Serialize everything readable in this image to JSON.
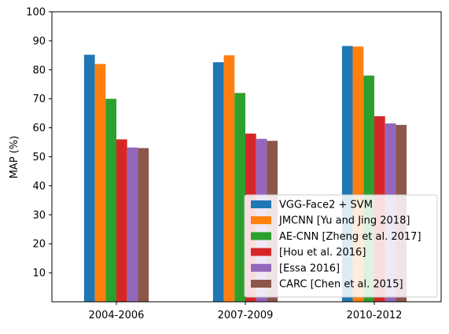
{
  "chart_data": {
    "type": "bar",
    "title": "",
    "xlabel": "",
    "ylabel": "MAP (%)",
    "ylim": [
      0,
      100
    ],
    "yticks": [
      10,
      20,
      30,
      40,
      50,
      60,
      70,
      80,
      90,
      100
    ],
    "categories": [
      "2004-2006",
      "2007-2009",
      "2010-2012"
    ],
    "grid": false,
    "legend_position": "bottom-right",
    "series": [
      {
        "name": "VGG-Face2 + SVM",
        "color": "#1f77b4",
        "values": [
          85.2,
          82.6,
          88.2
        ]
      },
      {
        "name": "JMCNN [Yu and Jing 2018]",
        "color": "#ff7f0e",
        "values": [
          82.0,
          85.0,
          88.0
        ]
      },
      {
        "name": "AE-CNN [Zheng et al. 2017]",
        "color": "#2ca02c",
        "values": [
          70.0,
          72.0,
          78.0
        ]
      },
      {
        "name": "[Hou et al. 2016]",
        "color": "#d62728",
        "values": [
          56.0,
          58.0,
          64.0
        ]
      },
      {
        "name": "[Essa 2016]",
        "color": "#9467bd",
        "values": [
          53.2,
          56.2,
          61.5
        ]
      },
      {
        "name": "CARC [Chen et al. 2015]",
        "color": "#8c564b",
        "values": [
          53.0,
          55.5,
          61.0
        ]
      }
    ]
  }
}
